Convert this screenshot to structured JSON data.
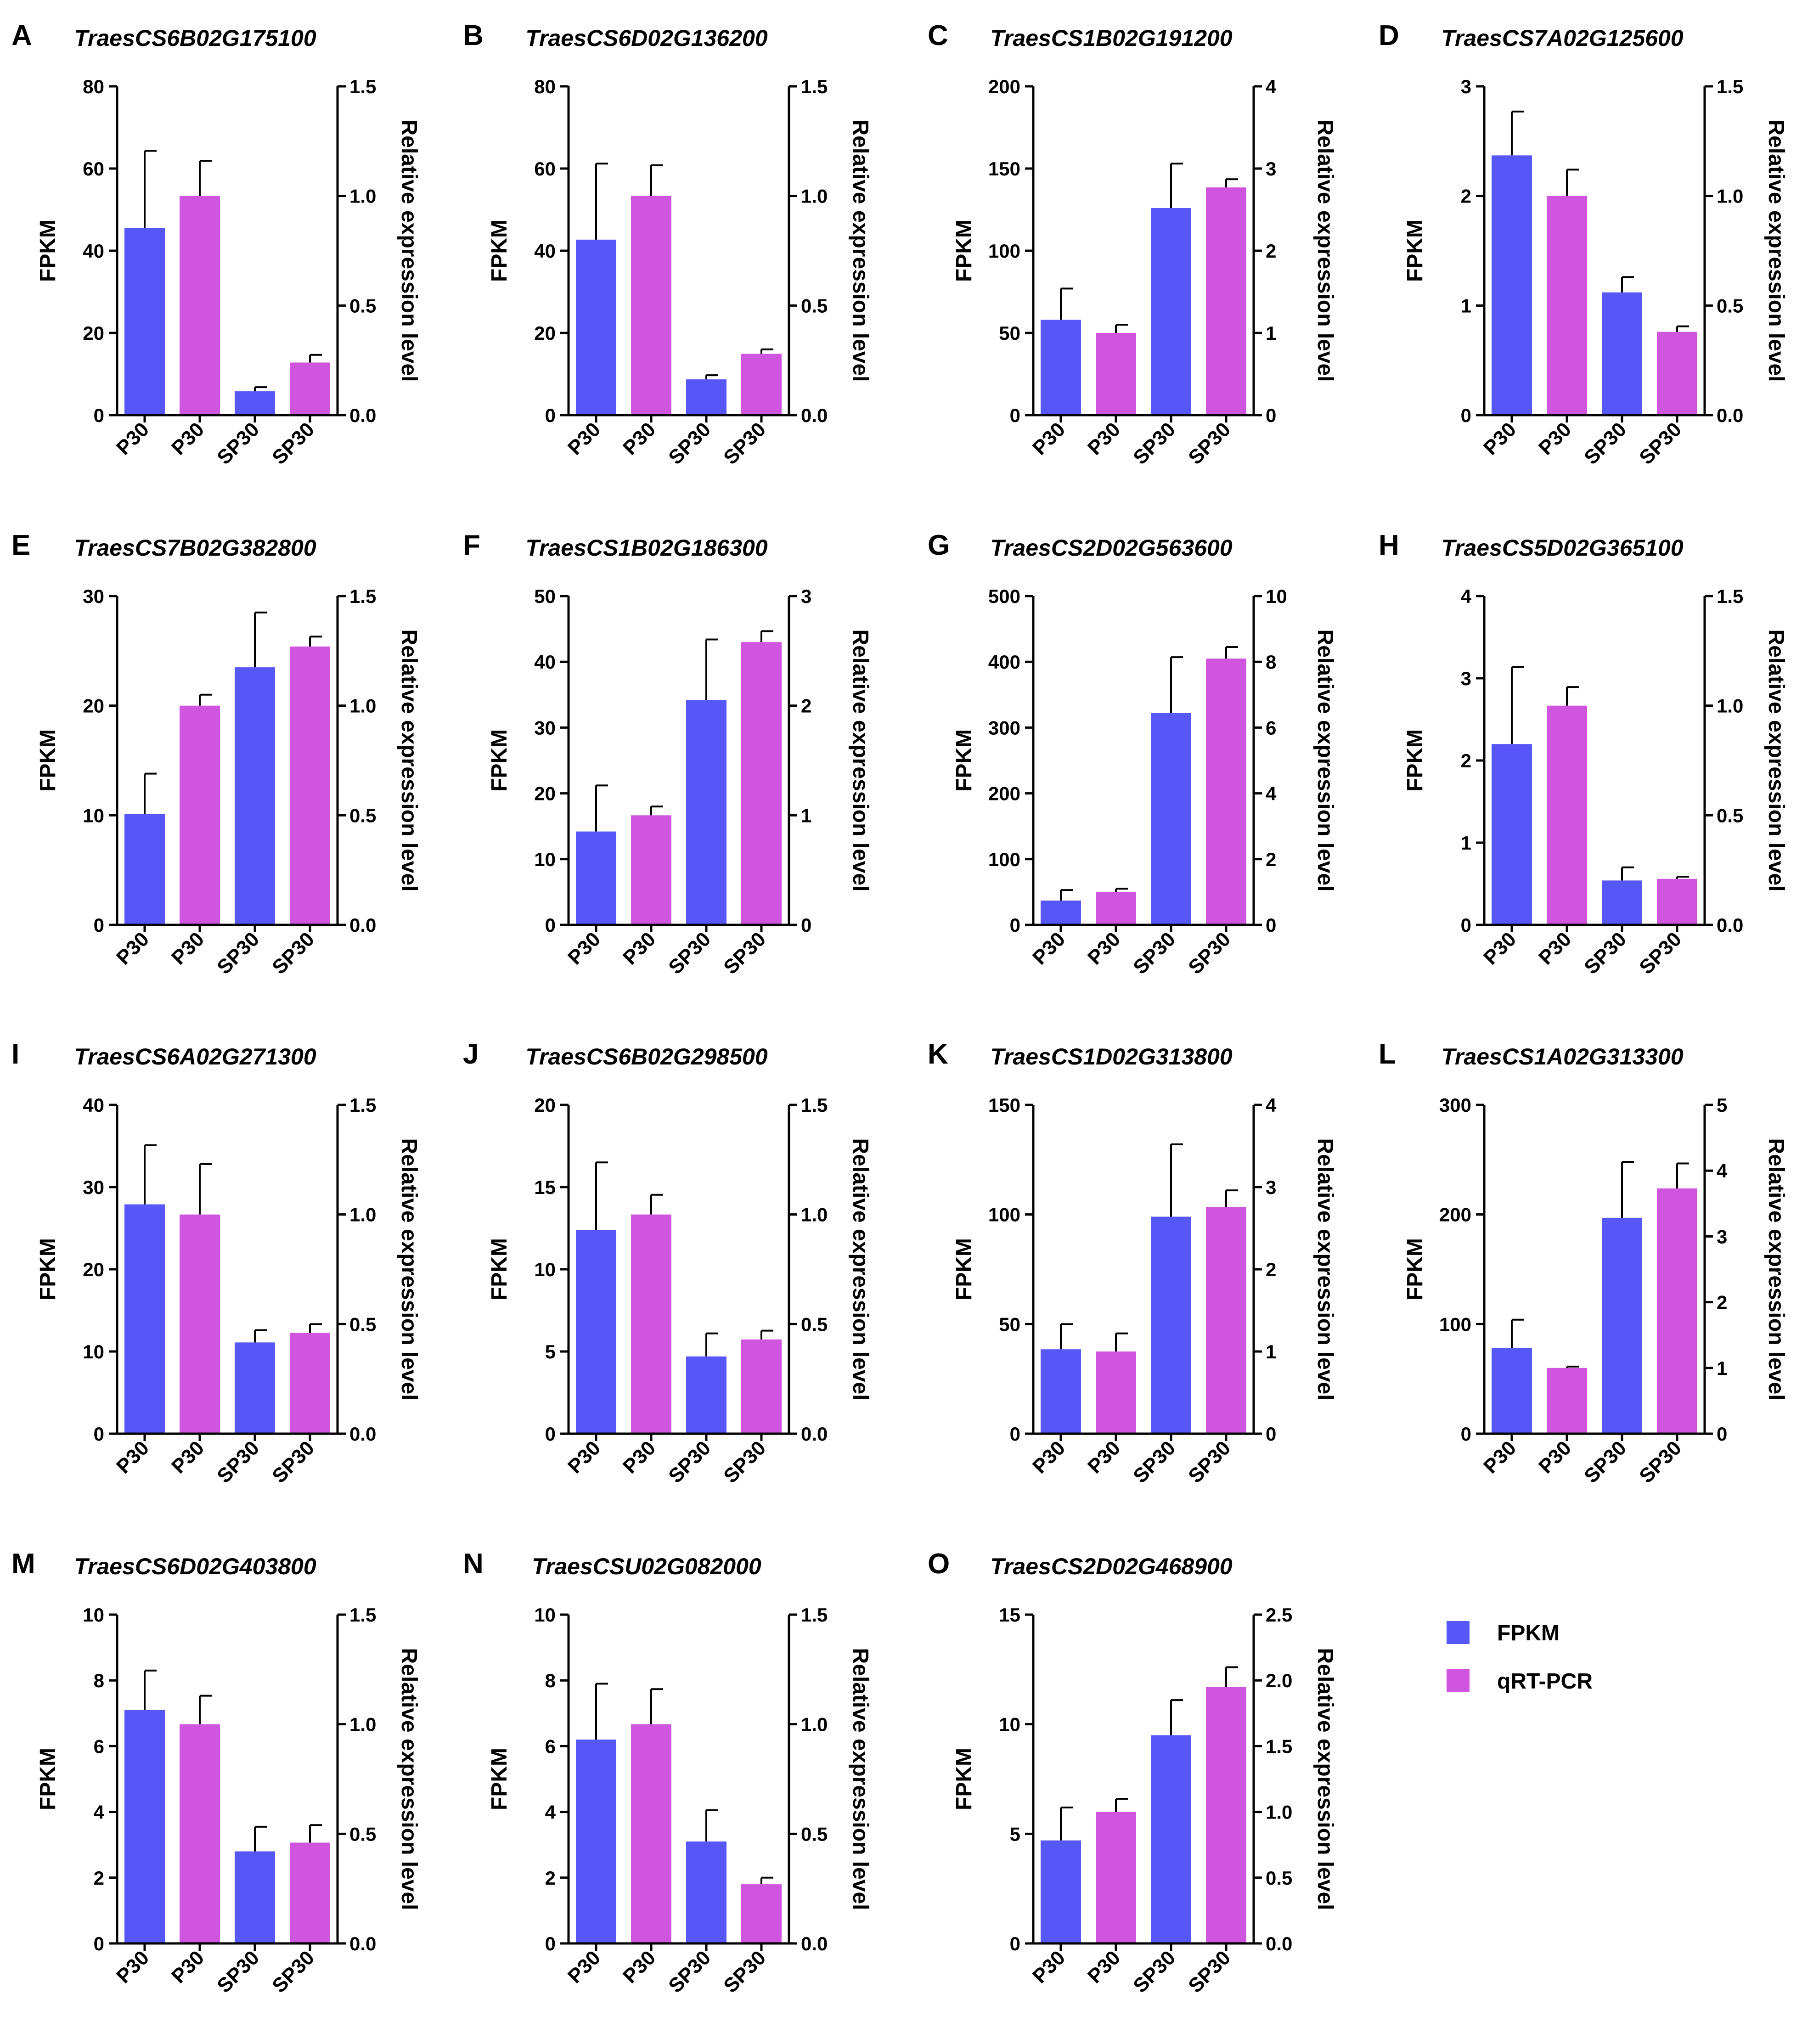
{
  "colors": {
    "fpkm": "#5757F8",
    "qrtpcr": "#D055DE",
    "axis": "#000000"
  },
  "legend": {
    "placement": "right of panel O",
    "items": [
      {
        "label": "FPKM",
        "color": "#5757F8"
      },
      {
        "label": "qRT-PCR",
        "color": "#D055DE"
      }
    ]
  },
  "chart_data": [
    {
      "type": "bar",
      "panel": "A",
      "title": "TraesCS6B02G175100",
      "categories": [
        "P30",
        "P30",
        "SP30",
        "SP30"
      ],
      "ylabel": "FPKM",
      "y2label": "Relative expression level",
      "ylim": [
        0,
        80
      ],
      "yticks": [
        0,
        20,
        40,
        60,
        80
      ],
      "y2lim": [
        0,
        1.5
      ],
      "y2ticks": [
        "0.0",
        "0.5",
        "1.0",
        "1.5"
      ],
      "series": [
        {
          "name": "FPKM",
          "positions": [
            0,
            2
          ],
          "values": [
            45.5,
            5.8
          ],
          "errors": [
            18.8,
            1.0
          ]
        },
        {
          "name": "qRT-PCR",
          "positions": [
            1,
            3
          ],
          "values": [
            1.0,
            0.24
          ],
          "errors": [
            0.16,
            0.035
          ]
        }
      ]
    },
    {
      "type": "bar",
      "panel": "B",
      "title": "TraesCS6D02G136200",
      "categories": [
        "P30",
        "P30",
        "SP30",
        "SP30"
      ],
      "ylabel": "FPKM",
      "y2label": "Relative expression level",
      "ylim": [
        0,
        80
      ],
      "yticks": [
        0,
        20,
        40,
        60,
        80
      ],
      "y2lim": [
        0,
        1.5
      ],
      "y2ticks": [
        "0.0",
        "0.5",
        "1.0",
        "1.5"
      ],
      "series": [
        {
          "name": "FPKM",
          "positions": [
            0,
            2
          ],
          "values": [
            42.7,
            8.7
          ],
          "errors": [
            18.5,
            1.0
          ]
        },
        {
          "name": "qRT-PCR",
          "positions": [
            1,
            3
          ],
          "values": [
            1.0,
            0.28
          ],
          "errors": [
            0.14,
            0.02
          ]
        }
      ]
    },
    {
      "type": "bar",
      "panel": "C",
      "title": "TraesCS1B02G191200",
      "categories": [
        "P30",
        "P30",
        "SP30",
        "SP30"
      ],
      "ylabel": "FPKM",
      "y2label": "Relative expression level",
      "ylim": [
        0,
        200
      ],
      "yticks": [
        0,
        50,
        100,
        150,
        200
      ],
      "y2lim": [
        0,
        4
      ],
      "y2ticks": [
        "0",
        "1",
        "2",
        "3",
        "4"
      ],
      "series": [
        {
          "name": "FPKM",
          "positions": [
            0,
            2
          ],
          "values": [
            58,
            126
          ],
          "errors": [
            19,
            27
          ]
        },
        {
          "name": "qRT-PCR",
          "positions": [
            1,
            3
          ],
          "values": [
            1.0,
            2.77
          ],
          "errors": [
            0.1,
            0.1
          ]
        }
      ]
    },
    {
      "type": "bar",
      "panel": "D",
      "title": "TraesCS7A02G125600",
      "categories": [
        "P30",
        "P30",
        "SP30",
        "SP30"
      ],
      "ylabel": "FPKM",
      "y2label": "Relative expression level",
      "ylim": [
        0,
        3
      ],
      "yticks": [
        0,
        1,
        2,
        3
      ],
      "y2lim": [
        0,
        1.5
      ],
      "y2ticks": [
        "0.0",
        "0.5",
        "1.0",
        "1.5"
      ],
      "series": [
        {
          "name": "FPKM",
          "positions": [
            0,
            2
          ],
          "values": [
            2.37,
            1.12
          ],
          "errors": [
            0.4,
            0.14
          ]
        },
        {
          "name": "qRT-PCR",
          "positions": [
            1,
            3
          ],
          "values": [
            1.0,
            0.38
          ],
          "errors": [
            0.12,
            0.025
          ]
        }
      ]
    },
    {
      "type": "bar",
      "panel": "E",
      "title": "TraesCS7B02G382800",
      "categories": [
        "P30",
        "P30",
        "SP30",
        "SP30"
      ],
      "ylabel": "FPKM",
      "y2label": "Relative expression level",
      "ylim": [
        0,
        30
      ],
      "yticks": [
        0,
        10,
        20,
        30
      ],
      "y2lim": [
        0,
        1.5
      ],
      "y2ticks": [
        "0.0",
        "0.5",
        "1.0",
        "1.5"
      ],
      "series": [
        {
          "name": "FPKM",
          "positions": [
            0,
            2
          ],
          "values": [
            10.1,
            23.5
          ],
          "errors": [
            3.7,
            5.0
          ]
        },
        {
          "name": "qRT-PCR",
          "positions": [
            1,
            3
          ],
          "values": [
            1.0,
            1.27
          ],
          "errors": [
            0.05,
            0.045
          ]
        }
      ]
    },
    {
      "type": "bar",
      "panel": "F",
      "title": "TraesCS1B02G186300",
      "categories": [
        "P30",
        "P30",
        "SP30",
        "SP30"
      ],
      "ylabel": "FPKM",
      "y2label": "Relative expression level",
      "ylim": [
        0,
        50
      ],
      "yticks": [
        0,
        10,
        20,
        30,
        40,
        50
      ],
      "y2lim": [
        0,
        3
      ],
      "y2ticks": [
        "0",
        "1",
        "2",
        "3"
      ],
      "series": [
        {
          "name": "FPKM",
          "positions": [
            0,
            2
          ],
          "values": [
            14.2,
            34.2
          ],
          "errors": [
            7.0,
            9.2
          ]
        },
        {
          "name": "qRT-PCR",
          "positions": [
            1,
            3
          ],
          "values": [
            1.0,
            2.58
          ],
          "errors": [
            0.08,
            0.1
          ]
        }
      ]
    },
    {
      "type": "bar",
      "panel": "G",
      "title": "TraesCS2D02G563600",
      "categories": [
        "P30",
        "P30",
        "SP30",
        "SP30"
      ],
      "ylabel": "FPKM",
      "y2label": "Relative expression level",
      "ylim": [
        0,
        500
      ],
      "yticks": [
        0,
        100,
        200,
        300,
        400,
        500
      ],
      "y2lim": [
        0,
        10
      ],
      "y2ticks": [
        "0",
        "2",
        "4",
        "6",
        "8",
        "10"
      ],
      "series": [
        {
          "name": "FPKM",
          "positions": [
            0,
            2
          ],
          "values": [
            37,
            322
          ],
          "errors": [
            16,
            85
          ]
        },
        {
          "name": "qRT-PCR",
          "positions": [
            1,
            3
          ],
          "values": [
            1.0,
            8.1
          ],
          "errors": [
            0.1,
            0.35
          ]
        }
      ]
    },
    {
      "type": "bar",
      "panel": "H",
      "title": "TraesCS5D02G365100",
      "categories": [
        "P30",
        "P30",
        "SP30",
        "SP30"
      ],
      "ylabel": "FPKM",
      "y2label": "Relative expression level",
      "ylim": [
        0,
        4
      ],
      "yticks": [
        0,
        1,
        2,
        3,
        4
      ],
      "y2lim": [
        0,
        1.5
      ],
      "y2ticks": [
        "0.0",
        "0.5",
        "1.0",
        "1.5"
      ],
      "series": [
        {
          "name": "FPKM",
          "positions": [
            0,
            2
          ],
          "values": [
            2.2,
            0.54
          ],
          "errors": [
            0.94,
            0.16
          ]
        },
        {
          "name": "qRT-PCR",
          "positions": [
            1,
            3
          ],
          "values": [
            1.0,
            0.21
          ],
          "errors": [
            0.085,
            0.01
          ]
        }
      ]
    },
    {
      "type": "bar",
      "panel": "I",
      "title": "TraesCS6A02G271300",
      "categories": [
        "P30",
        "P30",
        "SP30",
        "SP30"
      ],
      "ylabel": "FPKM",
      "y2label": "Relative expression level",
      "ylim": [
        0,
        40
      ],
      "yticks": [
        0,
        10,
        20,
        30,
        40
      ],
      "y2lim": [
        0,
        1.5
      ],
      "y2ticks": [
        "0.0",
        "0.5",
        "1.0",
        "1.5"
      ],
      "series": [
        {
          "name": "FPKM",
          "positions": [
            0,
            2
          ],
          "values": [
            27.9,
            11.1
          ],
          "errors": [
            7.2,
            1.5
          ]
        },
        {
          "name": "qRT-PCR",
          "positions": [
            1,
            3
          ],
          "values": [
            1.0,
            0.46
          ],
          "errors": [
            0.23,
            0.04
          ]
        }
      ]
    },
    {
      "type": "bar",
      "panel": "J",
      "title": "TraesCS6B02G298500",
      "categories": [
        "P30",
        "P30",
        "SP30",
        "SP30"
      ],
      "ylabel": "FPKM",
      "y2label": "Relative expression level",
      "ylim": [
        0,
        20
      ],
      "yticks": [
        0,
        5,
        10,
        15,
        20
      ],
      "y2lim": [
        0,
        1.5
      ],
      "y2ticks": [
        "0.0",
        "0.5",
        "1.0",
        "1.5"
      ],
      "series": [
        {
          "name": "FPKM",
          "positions": [
            0,
            2
          ],
          "values": [
            12.4,
            4.7
          ],
          "errors": [
            4.1,
            1.4
          ]
        },
        {
          "name": "qRT-PCR",
          "positions": [
            1,
            3
          ],
          "values": [
            1.0,
            0.43
          ],
          "errors": [
            0.09,
            0.04
          ]
        }
      ]
    },
    {
      "type": "bar",
      "panel": "K",
      "title": "TraesCS1D02G313800",
      "categories": [
        "P30",
        "P30",
        "SP30",
        "SP30"
      ],
      "ylabel": "FPKM",
      "y2label": "Relative expression level",
      "ylim": [
        0,
        150
      ],
      "yticks": [
        0,
        50,
        100,
        150
      ],
      "y2lim": [
        0,
        4
      ],
      "y2ticks": [
        "0",
        "1",
        "2",
        "3",
        "4"
      ],
      "series": [
        {
          "name": "FPKM",
          "positions": [
            0,
            2
          ],
          "values": [
            38.5,
            99
          ],
          "errors": [
            11.5,
            33
          ]
        },
        {
          "name": "qRT-PCR",
          "positions": [
            1,
            3
          ],
          "values": [
            1.0,
            2.76
          ],
          "errors": [
            0.22,
            0.2
          ]
        }
      ]
    },
    {
      "type": "bar",
      "panel": "L",
      "title": "TraesCS1A02G313300",
      "categories": [
        "P30",
        "P30",
        "SP30",
        "SP30"
      ],
      "ylabel": "FPKM",
      "y2label": "Relative expression level",
      "ylim": [
        0,
        300
      ],
      "yticks": [
        0,
        100,
        200,
        300
      ],
      "y2lim": [
        0,
        5
      ],
      "y2ticks": [
        "0",
        "1",
        "2",
        "3",
        "4",
        "5"
      ],
      "series": [
        {
          "name": "FPKM",
          "positions": [
            0,
            2
          ],
          "values": [
            78,
            197
          ],
          "errors": [
            26,
            51
          ]
        },
        {
          "name": "qRT-PCR",
          "positions": [
            1,
            3
          ],
          "values": [
            1.0,
            3.73
          ],
          "errors": [
            0.02,
            0.38
          ]
        }
      ]
    },
    {
      "type": "bar",
      "panel": "M",
      "title": "TraesCS6D02G403800",
      "categories": [
        "P30",
        "P30",
        "SP30",
        "SP30"
      ],
      "ylabel": "FPKM",
      "y2label": "Relative expression level",
      "ylim": [
        0,
        10
      ],
      "yticks": [
        0,
        2,
        4,
        6,
        8,
        10
      ],
      "y2lim": [
        0,
        1.5
      ],
      "y2ticks": [
        "0.0",
        "0.5",
        "1.0",
        "1.5"
      ],
      "series": [
        {
          "name": "FPKM",
          "positions": [
            0,
            2
          ],
          "values": [
            7.1,
            2.8
          ],
          "errors": [
            1.2,
            0.75
          ]
        },
        {
          "name": "qRT-PCR",
          "positions": [
            1,
            3
          ],
          "values": [
            1.0,
            0.46
          ],
          "errors": [
            0.13,
            0.08
          ]
        }
      ]
    },
    {
      "type": "bar",
      "panel": "N",
      "title": "TraesCSU02G082000",
      "categories": [
        "P30",
        "P30",
        "SP30",
        "SP30"
      ],
      "ylabel": "FPKM",
      "y2label": "Relative expression level",
      "ylim": [
        0,
        10
      ],
      "yticks": [
        0,
        2,
        4,
        6,
        8,
        10
      ],
      "y2lim": [
        0,
        1.5
      ],
      "y2ticks": [
        "0.0",
        "0.5",
        "1.0",
        "1.5"
      ],
      "series": [
        {
          "name": "FPKM",
          "positions": [
            0,
            2
          ],
          "values": [
            6.2,
            3.1
          ],
          "errors": [
            1.7,
            0.95
          ]
        },
        {
          "name": "qRT-PCR",
          "positions": [
            1,
            3
          ],
          "values": [
            1.0,
            0.27
          ],
          "errors": [
            0.16,
            0.03
          ]
        }
      ]
    },
    {
      "type": "bar",
      "panel": "O",
      "title": "TraesCS2D02G468900",
      "categories": [
        "P30",
        "P30",
        "SP30",
        "SP30"
      ],
      "ylabel": "FPKM",
      "y2label": "Relative expression level",
      "ylim": [
        0,
        15
      ],
      "yticks": [
        0,
        5,
        10,
        15
      ],
      "y2lim": [
        0,
        2.5
      ],
      "y2ticks": [
        "0.0",
        "0.5",
        "1.0",
        "1.5",
        "2.0",
        "2.5"
      ],
      "series": [
        {
          "name": "FPKM",
          "positions": [
            0,
            2
          ],
          "values": [
            4.7,
            9.5
          ],
          "errors": [
            1.5,
            1.6
          ]
        },
        {
          "name": "qRT-PCR",
          "positions": [
            1,
            3
          ],
          "values": [
            1.0,
            1.95
          ],
          "errors": [
            0.1,
            0.15
          ]
        }
      ]
    }
  ]
}
